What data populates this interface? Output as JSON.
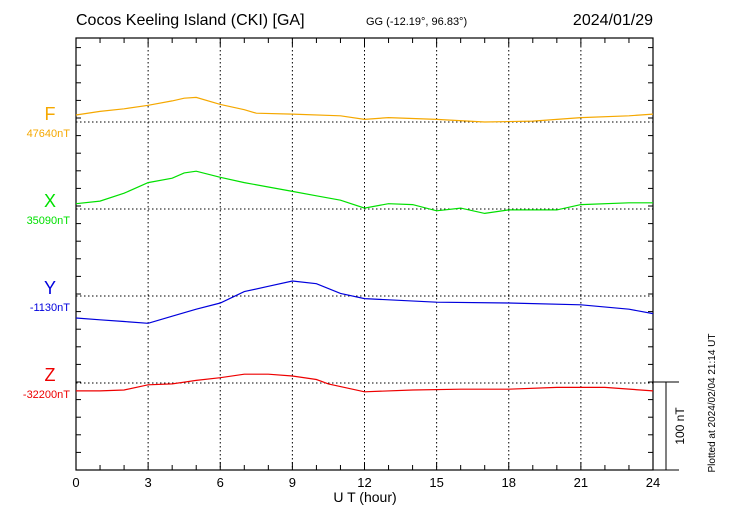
{
  "header": {
    "station": "Cocos Keeling Island (CKI)  [GA]",
    "coords": "GG (-12.19°,  96.83°)",
    "date": "2024/01/29"
  },
  "footer": {
    "plotted": "Plotted at 2024/02/04 21:14 UT",
    "scale_label": "100 nT"
  },
  "chart_data": {
    "type": "line",
    "title": "Cocos Keeling Island (CKI)  [GA]",
    "xlabel": "U T (hour)",
    "xlim": [
      0,
      24
    ],
    "xticks": [
      "0",
      "3",
      "6",
      "9",
      "12",
      "15",
      "18",
      "21",
      "24"
    ],
    "scale_nT": 100,
    "grid": true,
    "series": [
      {
        "name": "F",
        "baseline_label": "47640nT",
        "color": "#f5a800",
        "x": [
          0,
          1,
          2,
          3,
          4,
          4.5,
          5,
          6,
          7,
          7.5,
          9,
          11,
          12,
          13,
          15,
          17,
          19,
          21,
          23,
          24
        ],
        "dev": [
          8,
          12,
          15,
          19,
          24,
          27,
          28,
          20,
          14,
          10,
          9,
          7,
          3,
          5,
          3,
          0,
          1,
          5,
          7,
          9
        ]
      },
      {
        "name": "X",
        "baseline_label": "35090nT",
        "color": "#00e000",
        "x": [
          0,
          1,
          2,
          3,
          4,
          4.5,
          5,
          6,
          7,
          8,
          9,
          10,
          11,
          12,
          13,
          14,
          15,
          16,
          17,
          18,
          20,
          21,
          23,
          24
        ],
        "dev": [
          6,
          9,
          18,
          30,
          35,
          41,
          43,
          36,
          30,
          25,
          20,
          15,
          10,
          1,
          6,
          5,
          -2,
          1,
          -5,
          -1,
          -1,
          5,
          7,
          7
        ]
      },
      {
        "name": "Y",
        "baseline_label": "-1130nT",
        "color": "#0000dd",
        "x": [
          0,
          1,
          2,
          3,
          4,
          5,
          6,
          7,
          8,
          9,
          10,
          11,
          12,
          15,
          18,
          21,
          23,
          24
        ],
        "dev": [
          -25,
          -27,
          -29,
          -31,
          -23,
          -15,
          -8,
          5,
          11,
          17,
          14,
          3,
          -3,
          -7,
          -8,
          -10,
          -15,
          -20
        ]
      },
      {
        "name": "Z",
        "baseline_label": "-32200nT",
        "color": "#ee0000",
        "x": [
          0,
          1,
          2,
          3,
          4,
          5,
          6,
          7,
          8,
          9,
          10,
          10.5,
          12,
          14,
          16,
          18,
          20,
          22,
          24
        ],
        "dev": [
          -9,
          -9,
          -8,
          -2,
          -1,
          3,
          6,
          10,
          10,
          8,
          4,
          -1,
          -10,
          -8,
          -7,
          -7,
          -5,
          -5,
          -9
        ]
      }
    ]
  }
}
